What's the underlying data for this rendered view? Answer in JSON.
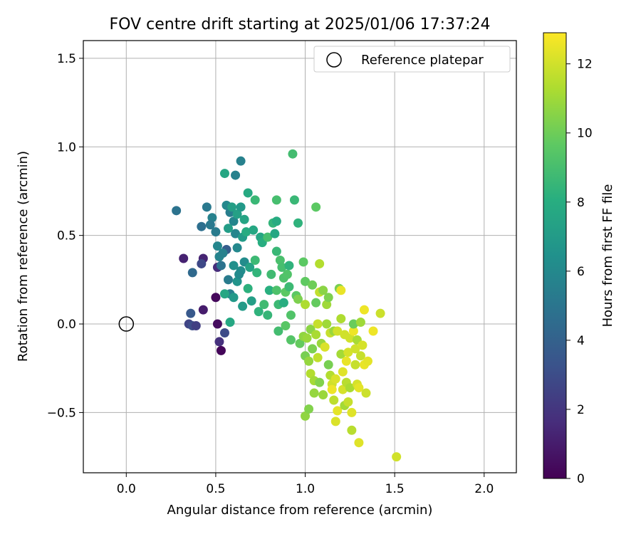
{
  "chart_data": {
    "type": "scatter",
    "title": "FOV centre drift starting at 2025/01/06 17:37:24",
    "xlabel": "Angular distance from reference (arcmin)",
    "ylabel": "Rotation from reference (arcmin)",
    "xlim": [
      -0.24,
      2.18
    ],
    "ylim": [
      -0.84,
      1.6
    ],
    "x_ticks": [
      0.0,
      0.5,
      1.0,
      1.5,
      2.0
    ],
    "x_tick_labels": [
      "0.0",
      "0.5",
      "1.0",
      "1.5",
      "2.0"
    ],
    "y_ticks": [
      -0.5,
      0.0,
      0.5,
      1.0,
      1.5
    ],
    "y_tick_labels": [
      "−0.5",
      "0.0",
      "0.5",
      "1.0",
      "1.5"
    ],
    "grid": true,
    "legend": {
      "placement": "top-right",
      "entries": [
        "Reference platepar"
      ]
    },
    "reference": {
      "name": "Reference platepar",
      "x": 0.0,
      "y": 0.0,
      "marker": "open-circle"
    },
    "colorbar": {
      "label": "Hours from first FF file",
      "colormap": "viridis",
      "min": 0,
      "max": 12.9,
      "ticks": [
        0,
        2,
        4,
        6,
        8,
        10,
        12
      ],
      "tick_labels": [
        "0",
        "2",
        "4",
        "6",
        "8",
        "10",
        "12"
      ]
    },
    "points": [
      [
        0.5,
        0.15,
        0.3
      ],
      [
        0.51,
        0.0,
        0.4
      ],
      [
        0.52,
        -0.1,
        1.8
      ],
      [
        0.53,
        -0.15,
        0.2
      ],
      [
        0.43,
        0.08,
        1.0
      ],
      [
        0.32,
        0.37,
        1.2
      ],
      [
        0.43,
        0.37,
        1.3
      ],
      [
        0.42,
        0.34,
        2.8
      ],
      [
        0.35,
        0.0,
        2.6
      ],
      [
        0.36,
        0.06,
        3.6
      ],
      [
        0.37,
        -0.01,
        3.0
      ],
      [
        0.39,
        -0.01,
        2.4
      ],
      [
        0.51,
        0.32,
        1.6
      ],
      [
        0.55,
        -0.05,
        2.9
      ],
      [
        0.56,
        0.42,
        3.8
      ],
      [
        0.37,
        0.29,
        4.4
      ],
      [
        0.28,
        0.64,
        4.9
      ],
      [
        0.42,
        0.55,
        4.7
      ],
      [
        0.45,
        0.66,
        5.2
      ],
      [
        0.48,
        0.6,
        5.6
      ],
      [
        0.5,
        0.52,
        5.3
      ],
      [
        0.51,
        0.44,
        5.9
      ],
      [
        0.52,
        0.38,
        5.7
      ],
      [
        0.53,
        0.33,
        4.9
      ],
      [
        0.57,
        0.25,
        5.3
      ],
      [
        0.56,
        0.67,
        6.0
      ],
      [
        0.58,
        0.63,
        5.4
      ],
      [
        0.6,
        0.58,
        5.8
      ],
      [
        0.61,
        0.51,
        5.8
      ],
      [
        0.62,
        0.43,
        6.0
      ],
      [
        0.64,
        0.92,
        5.6
      ],
      [
        0.61,
        0.84,
        5.6
      ],
      [
        0.6,
        0.33,
        6.4
      ],
      [
        0.58,
        0.17,
        5.5
      ],
      [
        0.6,
        0.15,
        6.9
      ],
      [
        0.62,
        0.24,
        6.6
      ],
      [
        0.64,
        0.3,
        6.3
      ],
      [
        0.66,
        0.35,
        6.2
      ],
      [
        0.55,
        0.17,
        7.6
      ],
      [
        0.55,
        0.85,
        7.6
      ],
      [
        0.57,
        0.54,
        7.1
      ],
      [
        0.59,
        0.66,
        7.2
      ],
      [
        0.62,
        0.62,
        7.3
      ],
      [
        0.64,
        0.66,
        6.9
      ],
      [
        0.66,
        0.59,
        7.5
      ],
      [
        0.65,
        0.49,
        7.0
      ],
      [
        0.67,
        0.52,
        7.9
      ],
      [
        0.68,
        0.74,
        7.8
      ],
      [
        0.69,
        0.32,
        7.4
      ],
      [
        0.7,
        0.13,
        7.2
      ],
      [
        0.65,
        0.1,
        7.0
      ],
      [
        0.58,
        0.01,
        7.7
      ],
      [
        0.68,
        0.2,
        8.2
      ],
      [
        0.72,
        0.7,
        8.6
      ],
      [
        0.72,
        0.36,
        8.7
      ],
      [
        0.73,
        0.29,
        8.4
      ],
      [
        0.74,
        0.07,
        8.3
      ],
      [
        0.75,
        0.49,
        7.6
      ],
      [
        0.76,
        0.46,
        8.0
      ],
      [
        0.77,
        0.11,
        8.8
      ],
      [
        0.79,
        0.05,
        8.5
      ],
      [
        0.79,
        0.49,
        9.0
      ],
      [
        0.8,
        0.19,
        8.1
      ],
      [
        0.81,
        0.28,
        8.8
      ],
      [
        0.82,
        0.57,
        8.4
      ],
      [
        0.83,
        0.51,
        7.7
      ],
      [
        0.84,
        0.41,
        8.6
      ],
      [
        0.84,
        0.58,
        7.9
      ],
      [
        0.84,
        0.19,
        9.2
      ],
      [
        0.84,
        0.7,
        9.0
      ],
      [
        0.85,
        0.11,
        8.7
      ],
      [
        0.85,
        -0.04,
        8.9
      ],
      [
        0.86,
        0.36,
        9.1
      ],
      [
        0.87,
        0.32,
        9.0
      ],
      [
        0.88,
        0.26,
        9.2
      ],
      [
        0.88,
        0.12,
        8.0
      ],
      [
        0.89,
        0.18,
        9.6
      ],
      [
        0.89,
        -0.01,
        9.5
      ],
      [
        0.9,
        0.28,
        9.3
      ],
      [
        0.91,
        0.33,
        8.3
      ],
      [
        0.91,
        0.21,
        8.7
      ],
      [
        0.92,
        0.05,
        9.3
      ],
      [
        0.92,
        -0.09,
        9.4
      ],
      [
        0.93,
        0.96,
        8.9
      ],
      [
        0.94,
        0.7,
        8.6
      ],
      [
        0.95,
        0.16,
        9.6
      ],
      [
        0.96,
        0.57,
        8.3
      ],
      [
        0.96,
        0.14,
        10.3
      ],
      [
        0.97,
        -0.11,
        9.8
      ],
      [
        0.99,
        0.35,
        9.6
      ],
      [
        0.99,
        -0.07,
        10.7
      ],
      [
        1.0,
        0.11,
        11.3
      ],
      [
        1.0,
        0.24,
        9.7
      ],
      [
        1.0,
        -0.18,
        10.2
      ],
      [
        1.0,
        -0.52,
        10.7
      ],
      [
        1.01,
        -0.08,
        10.9
      ],
      [
        1.02,
        -0.21,
        10.8
      ],
      [
        1.02,
        -0.48,
        10.4
      ],
      [
        1.03,
        -0.03,
        10.6
      ],
      [
        1.03,
        -0.28,
        11.4
      ],
      [
        1.04,
        0.22,
        10.0
      ],
      [
        1.04,
        -0.14,
        10.3
      ],
      [
        1.05,
        -0.32,
        11.1
      ],
      [
        1.05,
        -0.39,
        10.8
      ],
      [
        1.06,
        0.66,
        9.6
      ],
      [
        1.06,
        0.12,
        9.8
      ],
      [
        1.06,
        -0.06,
        11.2
      ],
      [
        1.07,
        0.0,
        11.8
      ],
      [
        1.07,
        -0.19,
        11.7
      ],
      [
        1.08,
        0.34,
        11.4
      ],
      [
        1.08,
        -0.33,
        10.4
      ],
      [
        1.08,
        0.18,
        11.7
      ],
      [
        1.09,
        -0.11,
        10.9
      ],
      [
        1.1,
        -0.4,
        10.9
      ],
      [
        1.1,
        0.19,
        10.6
      ],
      [
        1.11,
        -0.13,
        12.2
      ],
      [
        1.12,
        0.0,
        11.0
      ],
      [
        1.12,
        0.11,
        11.0
      ],
      [
        1.13,
        -0.23,
        10.2
      ],
      [
        1.13,
        0.15,
        10.3
      ],
      [
        1.14,
        -0.29,
        11.4
      ],
      [
        1.14,
        -0.05,
        11.8
      ],
      [
        1.15,
        -0.34,
        12.0
      ],
      [
        1.15,
        -0.37,
        12.6
      ],
      [
        1.16,
        -0.04,
        10.9
      ],
      [
        1.16,
        -0.43,
        11.6
      ],
      [
        1.17,
        -0.31,
        12.2
      ],
      [
        1.17,
        -0.55,
        12.2
      ],
      [
        1.18,
        -0.49,
        12.4
      ],
      [
        1.18,
        -0.04,
        12.0
      ],
      [
        1.19,
        0.2,
        10.2
      ],
      [
        1.2,
        0.19,
        12.5
      ],
      [
        1.2,
        0.03,
        11.3
      ],
      [
        1.2,
        -0.17,
        11.1
      ],
      [
        1.21,
        -0.27,
        12.3
      ],
      [
        1.21,
        -0.37,
        12.1
      ],
      [
        1.22,
        -0.06,
        12.0
      ],
      [
        1.22,
        -0.46,
        11.1
      ],
      [
        1.23,
        -0.21,
        12.5
      ],
      [
        1.23,
        -0.33,
        11.5
      ],
      [
        1.24,
        -0.44,
        11.8
      ],
      [
        1.24,
        -0.16,
        12.1
      ],
      [
        1.25,
        -0.36,
        11.2
      ],
      [
        1.25,
        -0.08,
        12.0
      ],
      [
        1.26,
        -0.5,
        12.3
      ],
      [
        1.26,
        -0.6,
        11.5
      ],
      [
        1.27,
        -0.04,
        12.6
      ],
      [
        1.27,
        0.0,
        9.9
      ],
      [
        1.28,
        -0.14,
        12.0
      ],
      [
        1.28,
        -0.23,
        11.8
      ],
      [
        1.29,
        -0.34,
        12.1
      ],
      [
        1.29,
        -0.09,
        11.2
      ],
      [
        1.3,
        -0.67,
        12.3
      ],
      [
        1.3,
        -0.36,
        12.4
      ],
      [
        1.31,
        0.01,
        11.0
      ],
      [
        1.31,
        -0.18,
        11.8
      ],
      [
        1.32,
        -0.12,
        12.1
      ],
      [
        1.33,
        0.08,
        12.6
      ],
      [
        1.33,
        -0.23,
        12.5
      ],
      [
        1.34,
        -0.39,
        11.9
      ],
      [
        1.35,
        -0.21,
        12.4
      ],
      [
        1.38,
        -0.04,
        12.6
      ],
      [
        1.42,
        0.06,
        11.9
      ],
      [
        1.51,
        -0.75,
        12.0
      ],
      [
        0.71,
        0.53,
        7.7
      ],
      [
        0.63,
        0.28,
        6.1
      ],
      [
        0.47,
        0.56,
        5.2
      ],
      [
        0.54,
        0.4,
        5.6
      ]
    ]
  }
}
